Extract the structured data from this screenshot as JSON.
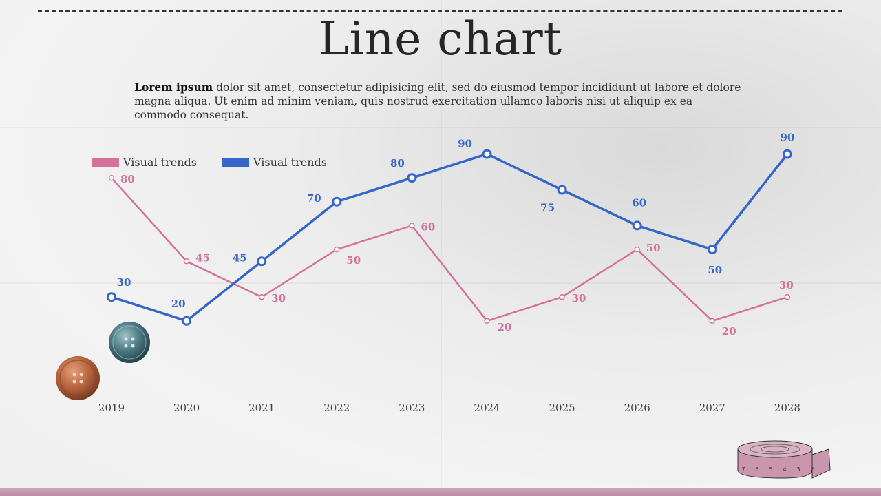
{
  "slide": {
    "title": "Line chart",
    "description_bold": "Lorem ipsum",
    "description_rest": " dolor sit amet, consectetur adipisicing elit, sed do eiusmod tempor incididunt ut labore et dolore magna aliqua. Ut enim ad minim veniam, quis nostrud exercitation ullamco laboris nisi ut aliquip ex ea commodo consequat."
  },
  "legend": [
    {
      "label": "Visual trends",
      "color": "#d4709a"
    },
    {
      "label": "Visual trends",
      "color": "#3566c8"
    }
  ],
  "decorations": {
    "tape_digits": [
      "7",
      "6",
      "5",
      "4",
      "3",
      "2"
    ]
  },
  "chart_data": {
    "type": "line",
    "title": "Line chart",
    "x": [
      "2019",
      "2020",
      "2021",
      "2022",
      "2023",
      "2024",
      "2025",
      "2026",
      "2027",
      "2028"
    ],
    "ylim": [
      0,
      100
    ],
    "xlabel": "",
    "ylabel": "",
    "grid": false,
    "legend_position": "top-left",
    "series": [
      {
        "name": "Visual trends",
        "color": "#d4709a",
        "values": [
          80,
          45,
          30,
          50,
          60,
          20,
          30,
          50,
          20,
          30
        ]
      },
      {
        "name": "Visual trends",
        "color": "#3566c8",
        "values": [
          30,
          20,
          45,
          70,
          80,
          90,
          75,
          60,
          50,
          90
        ]
      }
    ]
  }
}
